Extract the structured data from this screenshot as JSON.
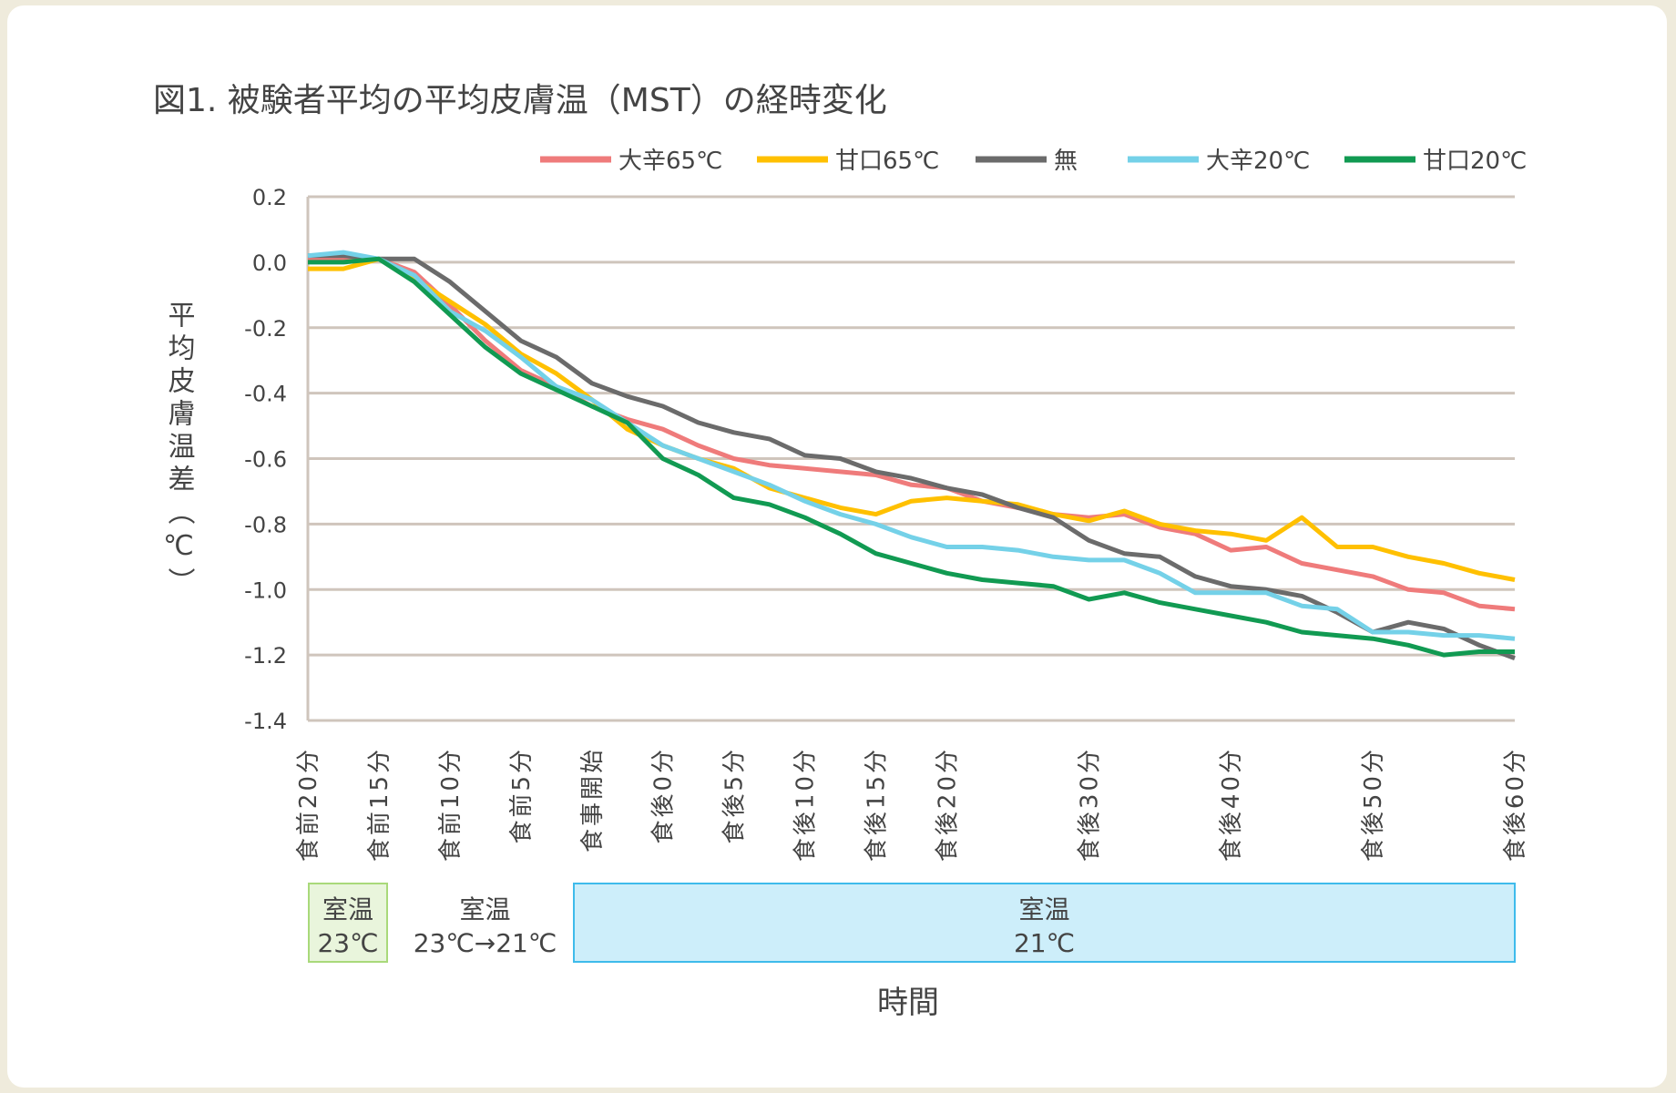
{
  "chart_data": {
    "type": "line",
    "title": "図1. 被験者平均の平均皮膚温（MST）の経時変化",
    "ylabel": "平均皮膚温差（℃）",
    "xlabel": "時間",
    "ylim": [
      -1.4,
      0.2
    ],
    "y_ticks": [
      "0.2",
      "0.0",
      "-0.2",
      "-0.4",
      "-0.6",
      "-0.8",
      "-1.0",
      "-1.2",
      "-1.4"
    ],
    "y_tick_values": [
      0.2,
      0.0,
      -0.2,
      -0.4,
      -0.6,
      -0.8,
      -1.0,
      -1.2,
      -1.4
    ],
    "grid": true,
    "legend_placement": "top",
    "x_ticks": [
      {
        "label": "食前20分",
        "index": 0
      },
      {
        "label": "食前15分",
        "index": 2
      },
      {
        "label": "食前10分",
        "index": 4
      },
      {
        "label": "食前5分",
        "index": 6
      },
      {
        "label": "食事開始",
        "index": 8
      },
      {
        "label": "食後0分",
        "index": 10
      },
      {
        "label": "食後5分",
        "index": 12
      },
      {
        "label": "食後10分",
        "index": 14
      },
      {
        "label": "食後15分",
        "index": 16
      },
      {
        "label": "食後20分",
        "index": 18
      },
      {
        "label": "食後30分",
        "index": 22
      },
      {
        "label": "食後40分",
        "index": 26
      },
      {
        "label": "食後50分",
        "index": 30
      },
      {
        "label": "食後60分",
        "index": 34
      }
    ],
    "series": [
      {
        "name": "大辛65℃",
        "color": "#ef7b7b",
        "values": [
          0.01,
          0.01,
          0.01,
          -0.03,
          -0.13,
          -0.24,
          -0.33,
          -0.38,
          -0.44,
          -0.48,
          -0.51,
          -0.56,
          -0.6,
          -0.62,
          -0.63,
          -0.64,
          -0.65,
          -0.68,
          -0.69,
          -0.73,
          -0.75,
          -0.77,
          -0.78,
          -0.77,
          -0.81,
          -0.83,
          -0.88,
          -0.87,
          -0.92,
          -0.94,
          -0.96,
          -1.0,
          -1.01,
          -1.05,
          -1.06
        ]
      },
      {
        "name": "甘口65℃",
        "color": "#ffc000",
        "values": [
          -0.02,
          -0.02,
          0.01,
          -0.05,
          -0.12,
          -0.19,
          -0.28,
          -0.34,
          -0.42,
          -0.51,
          -0.56,
          -0.6,
          -0.63,
          -0.69,
          -0.72,
          -0.75,
          -0.77,
          -0.73,
          -0.72,
          -0.73,
          -0.74,
          -0.77,
          -0.79,
          -0.76,
          -0.8,
          -0.82,
          -0.83,
          -0.85,
          -0.78,
          -0.87,
          -0.87,
          -0.9,
          -0.92,
          -0.95,
          -0.97
        ]
      },
      {
        "name": "無",
        "color": "#6b6b6b",
        "values": [
          0.02,
          0.02,
          0.01,
          0.01,
          -0.06,
          -0.15,
          -0.24,
          -0.29,
          -0.37,
          -0.41,
          -0.44,
          -0.49,
          -0.52,
          -0.54,
          -0.59,
          -0.6,
          -0.64,
          -0.66,
          -0.69,
          -0.71,
          -0.75,
          -0.78,
          -0.85,
          -0.89,
          -0.9,
          -0.96,
          -0.99,
          -1.0,
          -1.02,
          -1.07,
          -1.13,
          -1.1,
          -1.12,
          -1.17,
          -1.21
        ]
      },
      {
        "name": "大辛20℃",
        "color": "#74d1e8",
        "values": [
          0.02,
          0.03,
          0.01,
          -0.04,
          -0.15,
          -0.21,
          -0.29,
          -0.38,
          -0.42,
          -0.49,
          -0.56,
          -0.6,
          -0.64,
          -0.68,
          -0.73,
          -0.77,
          -0.8,
          -0.84,
          -0.87,
          -0.87,
          -0.88,
          -0.9,
          -0.91,
          -0.91,
          -0.95,
          -1.01,
          -1.01,
          -1.01,
          -1.05,
          -1.06,
          -1.13,
          -1.13,
          -1.14,
          -1.14,
          -1.15
        ]
      },
      {
        "name": "甘口20℃",
        "color": "#119a52",
        "values": [
          0.0,
          0.0,
          0.01,
          -0.06,
          -0.16,
          -0.26,
          -0.34,
          -0.39,
          -0.44,
          -0.49,
          -0.6,
          -0.65,
          -0.72,
          -0.74,
          -0.78,
          -0.83,
          -0.89,
          -0.92,
          -0.95,
          -0.97,
          -0.98,
          -0.99,
          -1.03,
          -1.01,
          -1.04,
          -1.06,
          -1.08,
          -1.1,
          -1.13,
          -1.14,
          -1.15,
          -1.17,
          -1.2,
          -1.19,
          -1.19
        ]
      }
    ],
    "annotations": [
      {
        "line1": "室温",
        "line2": "23℃",
        "fill": "#e9f5dc",
        "stroke": "#a9d97a"
      },
      {
        "line1": "室温",
        "line2": "23℃→21℃"
      },
      {
        "line1": "室温",
        "line2": "21℃",
        "fill": "#cdeefa",
        "stroke": "#3ebbeb"
      }
    ]
  }
}
